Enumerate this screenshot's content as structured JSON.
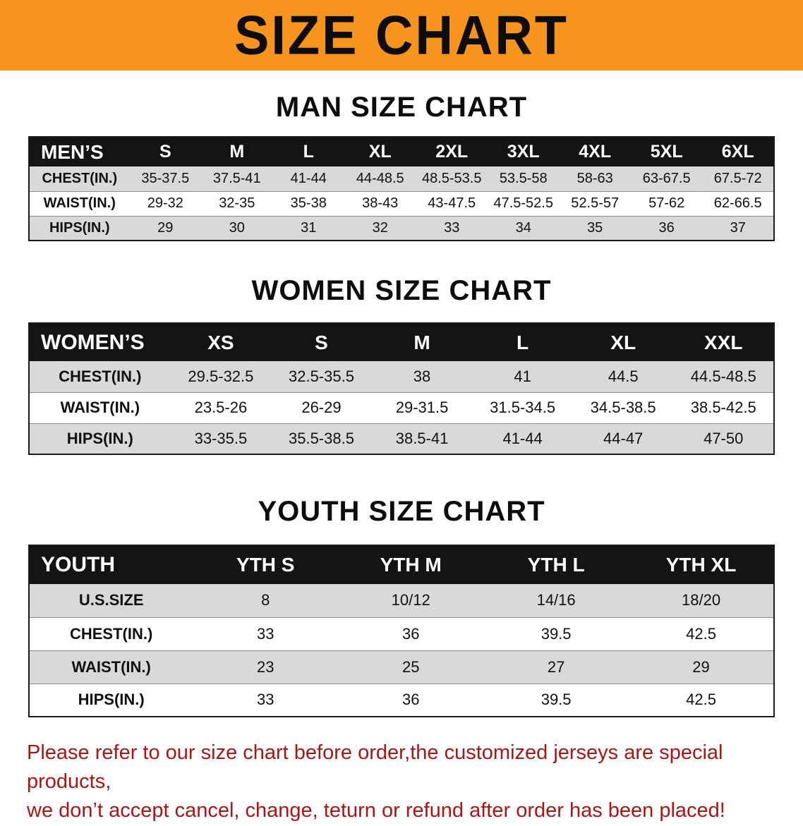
{
  "banner": {
    "title": "SIZE CHART"
  },
  "sections": [
    {
      "id": "men",
      "title": "MAN SIZE CHART",
      "header": [
        "MEN’S",
        "S",
        "M",
        "L",
        "XL",
        "2XL",
        "3XL",
        "4XL",
        "5XL",
        "6XL"
      ],
      "rows": [
        [
          "CHEST(IN.)",
          "35-37.5",
          "37.5-41",
          "41-44",
          "44-48.5",
          "48.5-53.5",
          "53.5-58",
          "58-63",
          "63-67.5",
          "67.5-72"
        ],
        [
          "WAIST(IN.)",
          "29-32",
          "32-35",
          "35-38",
          "38-43",
          "43-47.5",
          "47.5-52.5",
          "52.5-57",
          "57-62",
          "62-66.5"
        ],
        [
          "HIPS(IN.)",
          "29",
          "30",
          "31",
          "32",
          "33",
          "34",
          "35",
          "36",
          "37"
        ]
      ]
    },
    {
      "id": "women",
      "title": "WOMEN SIZE CHART",
      "header": [
        "WOMEN’S",
        "XS",
        "S",
        "M",
        "L",
        "XL",
        "XXL"
      ],
      "rows": [
        [
          "CHEST(IN.)",
          "29.5-32.5",
          "32.5-35.5",
          "38",
          "41",
          "44.5",
          "44.5-48.5"
        ],
        [
          "WAIST(IN.)",
          "23.5-26",
          "26-29",
          "29-31.5",
          "31.5-34.5",
          "34.5-38.5",
          "38.5-42.5"
        ],
        [
          "HIPS(IN.)",
          "33-35.5",
          "35.5-38.5",
          "38.5-41",
          "41-44",
          "44-47",
          "47-50"
        ]
      ]
    },
    {
      "id": "youth",
      "title": "YOUTH SIZE CHART",
      "header": [
        "YOUTH",
        "YTH S",
        "YTH M",
        "YTH L",
        "YTH XL"
      ],
      "rows": [
        [
          "U.S.SIZE",
          "8",
          "10/12",
          "14/16",
          "18/20"
        ],
        [
          "CHEST(IN.)",
          "33",
          "36",
          "39.5",
          "42.5"
        ],
        [
          "WAIST(IN.)",
          "23",
          "25",
          "27",
          "29"
        ],
        [
          "HIPS(IN.)",
          "33",
          "36",
          "39.5",
          "42.5"
        ]
      ]
    }
  ],
  "footer": {
    "line1": "Please refer to our size chart before order,the customized jerseys are special products,",
    "line2": "we don’t accept cancel, change, teturn or refund after order has been placed!"
  },
  "colors": {
    "banner_orange": "#F7941E",
    "header_black": "#141414",
    "row_gray": "#d9d9d9",
    "footer_red": "#A81616"
  }
}
